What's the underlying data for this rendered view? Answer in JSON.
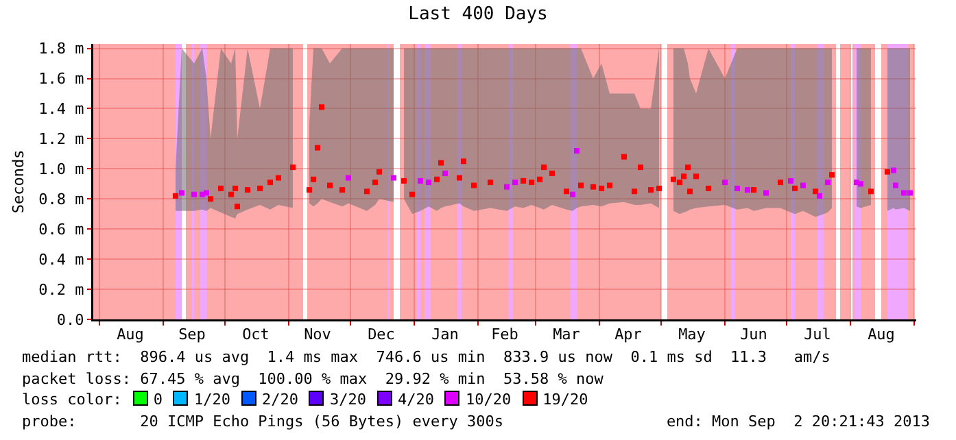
{
  "chart_data": {
    "type": "scatter",
    "title": "Last 400 Days",
    "ylabel": "Seconds",
    "xlim": [
      "2012-07-29",
      "2013-09-02"
    ],
    "xticks": [
      {
        "value": "2012-08-16",
        "label": "Aug"
      },
      {
        "value": "2012-09-15",
        "label": "Sep"
      },
      {
        "value": "2012-10-16",
        "label": "Oct"
      },
      {
        "value": "2012-11-15",
        "label": "Nov"
      },
      {
        "value": "2012-12-16",
        "label": "Dec"
      },
      {
        "value": "2013-01-16",
        "label": "Jan"
      },
      {
        "value": "2013-02-14",
        "label": "Feb"
      },
      {
        "value": "2013-03-16",
        "label": "Mar"
      },
      {
        "value": "2013-04-15",
        "label": "Apr"
      },
      {
        "value": "2013-05-16",
        "label": "May"
      },
      {
        "value": "2013-06-15",
        "label": "Jun"
      },
      {
        "value": "2013-07-16",
        "label": "Jul"
      },
      {
        "value": "2013-08-16",
        "label": "Aug"
      },
      {
        "value": "2012-08-01",
        "label": null
      },
      {
        "value": "2012-09-01",
        "label": null
      },
      {
        "value": "2012-10-01",
        "label": null
      },
      {
        "value": "2012-11-01",
        "label": null
      },
      {
        "value": "2012-12-01",
        "label": null
      },
      {
        "value": "2013-01-01",
        "label": null
      },
      {
        "value": "2013-02-01",
        "label": null
      },
      {
        "value": "2013-03-01",
        "label": null
      },
      {
        "value": "2013-04-01",
        "label": null
      },
      {
        "value": "2013-05-01",
        "label": null
      },
      {
        "value": "2013-06-01",
        "label": null
      },
      {
        "value": "2013-07-01",
        "label": null
      },
      {
        "value": "2013-08-01",
        "label": null
      },
      {
        "value": "2013-09-01",
        "label": null
      }
    ],
    "ylim": [
      0,
      1.83
    ],
    "yticks": [
      {
        "value": 0,
        "label": "0.0"
      },
      {
        "value": 0.2,
        "label": "0.2 m"
      },
      {
        "value": 0.4,
        "label": "0.4 m"
      },
      {
        "value": 0.6,
        "label": "0.6 m"
      },
      {
        "value": 0.8,
        "label": "0.8 m"
      },
      {
        "value": 1.0,
        "label": "1.0 m"
      },
      {
        "value": 1.2,
        "label": "1.2 m"
      },
      {
        "value": 1.4,
        "label": "1.4 m"
      },
      {
        "value": 1.6,
        "label": "1.6 m"
      },
      {
        "value": 1.8,
        "label": "1.8 m"
      }
    ],
    "grid": true,
    "marker": "square",
    "x": [
      "2012-09-07",
      "2012-09-10",
      "2012-09-16",
      "2012-09-20",
      "2012-09-22",
      "2012-09-24",
      "2012-09-29",
      "2012-10-04",
      "2012-10-06",
      "2012-10-07",
      "2012-10-12",
      "2012-10-18",
      "2012-10-23",
      "2012-10-27",
      "2012-11-03",
      "2012-11-08",
      "2012-11-11",
      "2012-11-13",
      "2012-11-15",
      "2012-11-17",
      "2012-11-21",
      "2012-11-27",
      "2012-11-30",
      "2012-12-09",
      "2012-12-13",
      "2012-12-15",
      "2012-12-22",
      "2012-12-24",
      "2012-12-27",
      "2012-12-31",
      "2013-01-04",
      "2013-01-08",
      "2013-01-12",
      "2013-01-14",
      "2013-01-16",
      "2013-01-23",
      "2013-01-25",
      "2013-01-30",
      "2013-02-07",
      "2013-02-15",
      "2013-02-19",
      "2013-02-23",
      "2013-02-27",
      "2013-03-03",
      "2013-03-05",
      "2013-03-09",
      "2013-03-16",
      "2013-03-19",
      "2013-03-21",
      "2013-03-23",
      "2013-03-29",
      "2013-04-02",
      "2013-04-06",
      "2013-04-13",
      "2013-04-18",
      "2013-04-21",
      "2013-04-26",
      "2013-04-30",
      "2013-05-02",
      "2013-05-07",
      "2013-05-10",
      "2013-05-12",
      "2013-05-14",
      "2013-05-15",
      "2013-05-18",
      "2013-05-24",
      "2013-06-01",
      "2013-06-07",
      "2013-06-12",
      "2013-06-15",
      "2013-06-21",
      "2013-06-28",
      "2013-07-03",
      "2013-07-05",
      "2013-07-09",
      "2013-07-15",
      "2013-07-17",
      "2013-07-21",
      "2013-07-23",
      "2013-07-26",
      "2013-08-04",
      "2013-08-06",
      "2013-08-11",
      "2013-08-14",
      "2013-08-19",
      "2013-08-22",
      "2013-08-23",
      "2013-08-27",
      "2013-08-30"
    ],
    "series": [
      {
        "values": [
          0.82,
          0.84,
          0.83,
          0.83,
          0.84,
          0.8,
          0.87,
          0.83,
          0.87,
          0.75,
          0.86,
          0.87,
          0.91,
          0.94,
          1.01,
          null,
          0.86,
          0.93,
          1.14,
          1.41,
          0.89,
          0.86,
          0.94,
          0.85,
          0.91,
          0.98,
          0.94,
          null,
          0.92,
          0.83,
          0.92,
          0.91,
          0.93,
          1.04,
          0.97,
          0.94,
          1.05,
          0.89,
          0.91,
          0.88,
          0.91,
          0.92,
          0.91,
          0.93,
          1.01,
          0.97,
          0.85,
          0.83,
          1.12,
          0.89,
          0.88,
          0.87,
          0.89,
          1.08,
          0.85,
          1.01,
          0.86,
          0.87,
          null,
          0.93,
          0.91,
          0.95,
          1.01,
          0.85,
          0.95,
          0.87,
          0.91,
          0.87,
          0.86,
          0.86,
          0.84,
          0.91,
          0.92,
          0.87,
          0.89,
          0.85,
          0.82,
          0.91,
          0.96,
          null,
          0.91,
          0.9,
          0.85,
          null,
          0.98,
          0.99,
          0.89,
          0.84,
          0.84
        ],
        "lower": [
          0.72,
          0.72,
          0.72,
          0.73,
          0.72,
          0.74,
          0.71,
          0.68,
          0.67,
          0.7,
          0.73,
          0.76,
          0.73,
          0.76,
          0.74,
          null,
          0.77,
          0.75,
          0.77,
          0.8,
          0.78,
          0.75,
          0.77,
          0.72,
          0.76,
          0.8,
          0.78,
          null,
          0.8,
          0.7,
          0.72,
          0.75,
          0.72,
          0.74,
          0.75,
          0.77,
          0.75,
          0.72,
          0.74,
          0.72,
          0.75,
          0.74,
          0.76,
          0.74,
          0.73,
          0.76,
          0.73,
          0.72,
          0.74,
          0.75,
          0.76,
          0.75,
          0.77,
          0.78,
          0.76,
          0.76,
          0.77,
          0.74,
          null,
          0.72,
          0.7,
          0.71,
          0.72,
          0.73,
          0.74,
          0.75,
          0.76,
          0.73,
          0.74,
          0.72,
          0.74,
          0.74,
          0.71,
          0.7,
          0.72,
          0.68,
          0.69,
          0.71,
          0.74,
          null,
          0.75,
          0.74,
          0.76,
          null,
          0.72,
          0.74,
          0.73,
          0.74,
          0.72
        ],
        "upper": [
          1.0,
          1.8,
          1.7,
          1.8,
          1.6,
          1.2,
          1.8,
          1.7,
          1.8,
          1.2,
          1.8,
          1.4,
          1.8,
          1.8,
          1.8,
          null,
          1.3,
          1.8,
          1.8,
          1.8,
          1.7,
          1.8,
          1.8,
          1.8,
          1.8,
          1.8,
          1.8,
          null,
          1.8,
          1.8,
          1.8,
          1.8,
          1.8,
          1.8,
          1.8,
          1.8,
          1.8,
          1.8,
          1.8,
          1.8,
          1.8,
          1.8,
          1.8,
          1.8,
          1.8,
          1.8,
          1.8,
          1.8,
          1.8,
          1.8,
          1.6,
          1.7,
          1.5,
          1.5,
          1.5,
          1.4,
          1.4,
          1.8,
          null,
          1.8,
          1.8,
          1.8,
          1.7,
          1.6,
          1.5,
          1.8,
          1.6,
          1.8,
          1.8,
          1.8,
          1.8,
          1.8,
          1.8,
          1.8,
          1.8,
          1.8,
          1.8,
          1.8,
          1.8,
          null,
          1.8,
          1.8,
          1.8,
          null,
          1.8,
          1.8,
          1.8,
          1.8,
          1.8
        ],
        "colors": [
          "#ff0000",
          "#dd00ff",
          "#dd00ff",
          "#dd00ff",
          "#dd00ff",
          "#ff0000",
          "#ff0000",
          "#ff0000",
          "#ff0000",
          "#ff0000",
          "#ff0000",
          "#ff0000",
          "#ff0000",
          "#ff0000",
          "#ff0000",
          null,
          "#ff0000",
          "#ff0000",
          "#ff0000",
          "#ff0000",
          "#ff0000",
          "#ff0000",
          "#dd00ff",
          "#ff0000",
          "#ff0000",
          "#ff0000",
          "#dd00ff",
          null,
          "#ff0000",
          "#ff0000",
          "#dd00ff",
          "#dd00ff",
          "#ff0000",
          "#ff0000",
          "#dd00ff",
          "#ff0000",
          "#ff0000",
          "#ff0000",
          "#ff0000",
          "#dd00ff",
          "#dd00ff",
          "#ff0000",
          "#ff0000",
          "#ff0000",
          "#ff0000",
          "#ff0000",
          "#ff0000",
          "#dd00ff",
          "#dd00ff",
          "#ff0000",
          "#ff0000",
          "#ff0000",
          "#ff0000",
          "#ff0000",
          "#ff0000",
          "#ff0000",
          "#ff0000",
          "#ff0000",
          null,
          "#ff0000",
          "#ff0000",
          "#ff0000",
          "#ff0000",
          "#ff0000",
          "#ff0000",
          "#ff0000",
          "#dd00ff",
          "#dd00ff",
          "#dd00ff",
          "#ff0000",
          "#dd00ff",
          "#ff0000",
          "#dd00ff",
          "#ff0000",
          "#dd00ff",
          "#ff0000",
          "#dd00ff",
          "#dd00ff",
          "#ff0000",
          null,
          "#dd00ff",
          "#dd00ff",
          "#ff0000",
          null,
          "#ff0000",
          "#dd00ff",
          "#dd00ff",
          "#dd00ff",
          "#dd00ff"
        ]
      }
    ],
    "bands": [
      {
        "axis": "x",
        "from": "2012-07-29",
        "to": "2012-09-10",
        "color": "#ffaaaa"
      },
      {
        "axis": "x",
        "from": "2012-09-12",
        "to": "2012-11-08",
        "color": "#ffaaaa"
      },
      {
        "axis": "x",
        "from": "2012-11-10",
        "to": "2012-12-22",
        "color": "#ffaaaa"
      },
      {
        "axis": "x",
        "from": "2012-12-25",
        "to": "2013-05-01",
        "color": "#ffaaaa"
      },
      {
        "axis": "x",
        "from": "2013-05-04",
        "to": "2013-07-25",
        "color": "#ffaaaa"
      },
      {
        "axis": "x",
        "from": "2013-07-27",
        "to": "2013-08-01",
        "color": "#ffaaaa"
      },
      {
        "axis": "x",
        "from": "2013-08-02",
        "to": "2013-08-13",
        "color": "#ffaaaa"
      },
      {
        "axis": "x",
        "from": "2013-08-16",
        "to": "2013-09-01",
        "color": "#ffaaaa"
      },
      {
        "axis": "x",
        "from": "2012-09-07",
        "to": "2012-09-10",
        "color": "#f0a8ff"
      },
      {
        "axis": "x",
        "from": "2012-09-15",
        "to": "2012-09-16",
        "color": "#f0a8ff"
      },
      {
        "axis": "x",
        "from": "2012-09-19",
        "to": "2012-09-22",
        "color": "#f0a8ff"
      },
      {
        "axis": "x",
        "from": "2012-12-19",
        "to": "2012-12-20",
        "color": "#f0a8ff"
      },
      {
        "axis": "x",
        "from": "2013-01-02",
        "to": "2013-01-04",
        "color": "#f0a8ff"
      },
      {
        "axis": "x",
        "from": "2013-01-06",
        "to": "2013-01-09",
        "color": "#f0a8ff"
      },
      {
        "axis": "x",
        "from": "2013-01-22",
        "to": "2013-01-24",
        "color": "#f0a8ff"
      },
      {
        "axis": "x",
        "from": "2013-02-16",
        "to": "2013-02-18",
        "color": "#f0a8ff"
      },
      {
        "axis": "x",
        "from": "2013-03-18",
        "to": "2013-03-21",
        "color": "#f0a8ff"
      },
      {
        "axis": "x",
        "from": "2013-06-04",
        "to": "2013-06-06",
        "color": "#f0a8ff"
      },
      {
        "axis": "x",
        "from": "2013-07-03",
        "to": "2013-07-05",
        "color": "#f0a8ff"
      },
      {
        "axis": "x",
        "from": "2013-07-16",
        "to": "2013-07-19",
        "color": "#f0a8ff"
      },
      {
        "axis": "x",
        "from": "2013-08-03",
        "to": "2013-08-06",
        "color": "#f0a8ff"
      },
      {
        "axis": "x",
        "from": "2013-08-19",
        "to": "2013-08-29",
        "color": "#f0a8ff"
      }
    ],
    "annotations": [
      "median rtt:  896.4 us avg  1.4 ms max  746.6 us min  833.9 us now  0.1 ms sd  11.3   am/s",
      "packet loss: 67.45 % avg  100.00 % max  29.92 % min  53.58 % now",
      "loss color:",
      "0",
      "1/20",
      "2/20",
      "3/20",
      "4/20",
      "10/20",
      "19/20",
      "probe:       20 ICMP Echo Pings (56 Bytes) every 300s",
      "end: Mon Sep  2 20:21:43 2013"
    ]
  }
}
